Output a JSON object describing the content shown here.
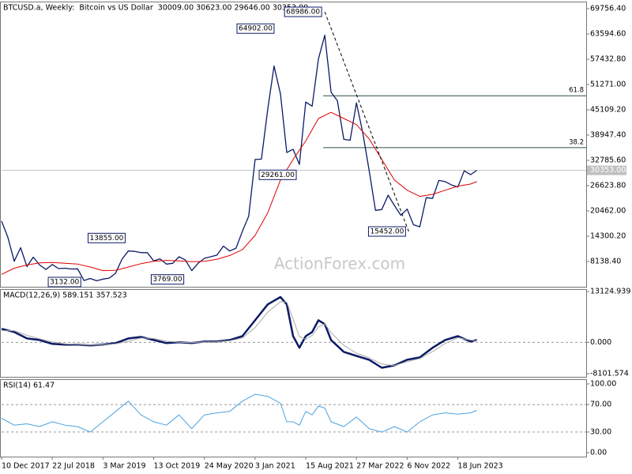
{
  "chart_data": [
    {
      "type": "line",
      "title": "BTCUSD.a, Weekly:  Bitcoin vs US Dollar  30009.00 30623.00 29646.00 30353.00",
      "watermark": "ActionForex.com",
      "xlim": [
        0,
        369
      ],
      "ylim": [
        1977,
        71489
      ],
      "yticks": [
        {
          "value": 69756.4,
          "label": "69756.40"
        },
        {
          "value": 63594.6,
          "label": "63594.60"
        },
        {
          "value": 57432.8,
          "label": "57432.80"
        },
        {
          "value": 51271,
          "label": "51271.00"
        },
        {
          "value": 45109.2,
          "label": "45109.20"
        },
        {
          "value": 38947.4,
          "label": "38947.40"
        },
        {
          "value": 32785.6,
          "label": "32785.60"
        },
        {
          "value": 26623.8,
          "label": "26623.80"
        },
        {
          "value": 20462,
          "label": "20462.00"
        },
        {
          "value": 14300.2,
          "label": "14300.20"
        },
        {
          "value": 8138.4,
          "label": "8138.40"
        }
      ],
      "series": [
        {
          "color": "#0b1b66",
          "x": [
            0,
            4,
            8,
            12,
            16,
            20,
            24,
            28,
            32,
            36,
            40,
            44,
            48,
            52,
            56,
            60,
            64,
            68,
            72,
            76,
            80,
            84,
            88,
            92,
            96,
            100,
            104,
            108,
            112,
            116,
            120,
            124,
            128,
            132,
            136,
            140,
            144,
            148,
            152,
            156,
            160,
            164,
            168,
            172,
            176,
            180,
            184,
            188,
            192,
            196,
            200,
            204,
            208,
            212,
            216,
            220,
            224,
            228,
            232,
            236,
            240,
            244,
            248,
            252,
            256,
            260,
            264,
            268,
            272,
            276,
            280,
            284,
            288,
            292,
            296,
            300
          ],
          "values": [
            18000,
            14000,
            8200,
            11500,
            6900,
            9200,
            7300,
            6200,
            7400,
            6400,
            6500,
            6300,
            6350,
            3500,
            4000,
            3450,
            3850,
            4100,
            5300,
            8700,
            10700,
            10600,
            10300,
            10300,
            8300,
            8800,
            7500,
            7700,
            9300,
            8500,
            5900,
            7700,
            8900,
            9300,
            9700,
            11900,
            10700,
            11400,
            15500,
            19200,
            33000,
            33100,
            45200,
            55800,
            49000,
            34700,
            35500,
            31800,
            47000,
            46000,
            57500,
            63300,
            49400,
            47300,
            37900,
            37700,
            46800,
            39500,
            30300,
            20600,
            20800,
            24300,
            21800,
            19400,
            20900,
            17100,
            16600,
            23700,
            23500,
            27900,
            27600,
            26800,
            26300,
            30250,
            29300,
            30353
          ]
        },
        {
          "color": "#e00000",
          "x": [
            0,
            8,
            16,
            24,
            32,
            40,
            48,
            56,
            64,
            72,
            80,
            88,
            96,
            104,
            112,
            120,
            128,
            136,
            144,
            152,
            160,
            168,
            176,
            184,
            192,
            200,
            208,
            216,
            224,
            232,
            240,
            248,
            256,
            264,
            272,
            280,
            288,
            296,
            300
          ],
          "values": [
            5000,
            6500,
            7300,
            7800,
            7900,
            7700,
            7500,
            6800,
            5900,
            6000,
            6800,
            7600,
            8200,
            8400,
            8300,
            8100,
            8200,
            8700,
            9600,
            11000,
            14500,
            20000,
            28000,
            33000,
            37500,
            43000,
            44500,
            43000,
            41500,
            38000,
            33000,
            28000,
            25500,
            24000,
            24500,
            25500,
            26500,
            27000,
            27600
          ]
        }
      ],
      "annotations": [
        {
          "x": 204,
          "value": 68986,
          "label": "68986.00"
        },
        {
          "x": 174,
          "value": 64902,
          "label": "64902.00"
        },
        {
          "x": 188,
          "value": 29261,
          "label": "29261.00"
        },
        {
          "x": 52,
          "value": 3132,
          "label": "3132.00"
        },
        {
          "x": 80,
          "value": 13855,
          "label": "13855.00"
        },
        {
          "x": 117,
          "value": 3769,
          "label": "3769.00"
        },
        {
          "x": 257,
          "value": 15452,
          "label": "15452.00"
        }
      ],
      "fib_levels": [
        {
          "from_x": 203,
          "value": 48536,
          "label": "61.8"
        },
        {
          "from_x": 203,
          "value": 35902,
          "label": "38.2"
        }
      ],
      "last_price": {
        "value": 30353,
        "label": "30353.00"
      }
    },
    {
      "type": "line",
      "title": "MACD(12,26,9) 589.151 357.523",
      "ylim": [
        -8913,
        13740
      ],
      "yticks": [
        13124.939,
        {
          "value": 0,
          "label": "0.000"
        },
        -8101.574
      ],
      "series": [
        {
          "color": "#0b1b66",
          "x": [
            0,
            8,
            16,
            24,
            32,
            40,
            48,
            56,
            64,
            72,
            80,
            88,
            96,
            104,
            112,
            120,
            128,
            136,
            144,
            152,
            160,
            168,
            176,
            180,
            184,
            188,
            192,
            196,
            200,
            204,
            208,
            216,
            224,
            232,
            240,
            248,
            256,
            264,
            272,
            280,
            288,
            296,
            300
          ],
          "values": [
            3485,
            2665,
            1000,
            600,
            -400,
            -600,
            -600,
            -800,
            -600,
            -200,
            1000,
            1400,
            600,
            -200,
            0,
            -200,
            200,
            200,
            600,
            1600,
            5700,
            9800,
            11700,
            9800,
            1600,
            -1400,
            1600,
            2650,
            5700,
            4700,
            600,
            -2460,
            -3500,
            -4500,
            -6560,
            -5950,
            -4500,
            -3900,
            -1400,
            600,
            1600,
            200,
            589.151
          ]
        },
        {
          "color": "#a9a9a9",
          "x": [
            0,
            8,
            16,
            24,
            32,
            40,
            48,
            56,
            64,
            72,
            80,
            88,
            96,
            104,
            112,
            120,
            128,
            136,
            144,
            152,
            160,
            168,
            176,
            180,
            184,
            188,
            192,
            196,
            200,
            204,
            208,
            216,
            224,
            232,
            240,
            248,
            256,
            264,
            272,
            280,
            288,
            296,
            300
          ],
          "values": [
            3000,
            3000,
            1800,
            900,
            100,
            -400,
            -550,
            -700,
            -650,
            -400,
            300,
            1100,
            1000,
            300,
            0,
            -100,
            100,
            150,
            400,
            1100,
            3800,
            7800,
            10500,
            10400,
            6000,
            1500,
            800,
            1800,
            4000,
            4800,
            2500,
            -800,
            -2800,
            -4000,
            -5600,
            -6000,
            -5000,
            -4200,
            -2400,
            -300,
            1200,
            600,
            357.523
          ]
        }
      ]
    },
    {
      "type": "line",
      "title": "RSI(14) 61.47",
      "ylim": [
        -5.7,
        106.9
      ],
      "yticks": [
        {
          "value": 100,
          "label": "100.00"
        },
        {
          "value": 70,
          "label": "70.00"
        },
        {
          "value": 30,
          "label": "30.00"
        },
        {
          "value": 0,
          "label": "0.00"
        }
      ],
      "series": [
        {
          "color": "#4aa3df",
          "x": [
            0,
            8,
            16,
            24,
            32,
            40,
            48,
            56,
            64,
            72,
            80,
            88,
            96,
            104,
            112,
            120,
            128,
            136,
            144,
            152,
            160,
            168,
            176,
            180,
            184,
            188,
            192,
            196,
            200,
            204,
            208,
            216,
            224,
            232,
            240,
            248,
            256,
            264,
            272,
            280,
            288,
            296,
            300
          ],
          "values": [
            50,
            40,
            42,
            38,
            45,
            40,
            38,
            30,
            45,
            60,
            75,
            55,
            45,
            40,
            55,
            35,
            55,
            58,
            60,
            75,
            85,
            82,
            72,
            45,
            45,
            40,
            60,
            55,
            68,
            65,
            45,
            38,
            52,
            35,
            30,
            38,
            30,
            45,
            55,
            58,
            56,
            58,
            61.47
          ]
        }
      ],
      "xticks": [
        {
          "value": 0,
          "label": "10 Dec 2017"
        },
        {
          "value": 32,
          "label": "22 Jul 2018"
        },
        {
          "value": 64,
          "label": "3 Mar 2019"
        },
        {
          "value": 96,
          "label": "13 Oct 2019"
        },
        {
          "value": 128,
          "label": "24 May 2020"
        },
        {
          "value": 160,
          "label": "3 Jan 2021"
        },
        {
          "value": 192,
          "label": "15 Aug 2021"
        },
        {
          "value": 224,
          "label": "27 Mar 2022"
        },
        {
          "value": 256,
          "label": "6 Nov 2022"
        },
        {
          "value": 288,
          "label": "18 Jun 2023"
        }
      ]
    }
  ]
}
